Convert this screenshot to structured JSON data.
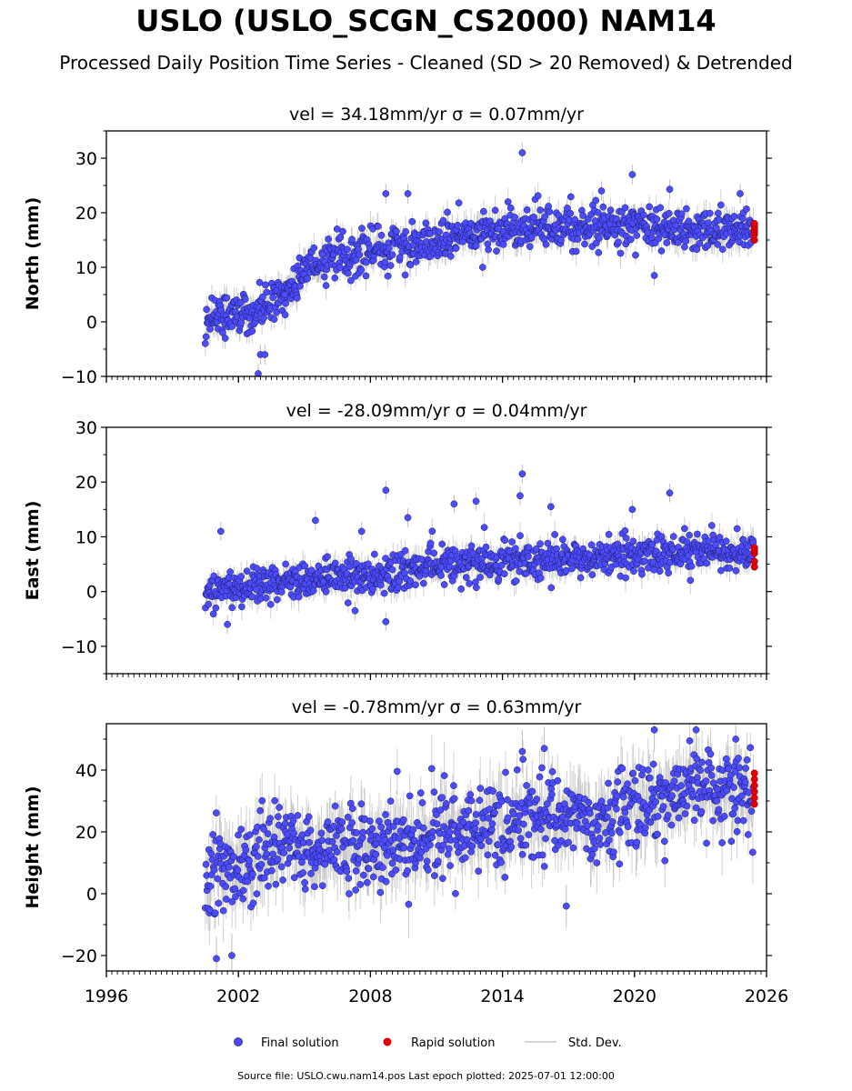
{
  "header": {
    "title": "USLO (USLO_SCGN_CS2000) NAM14",
    "subtitle": "Processed Daily Position Time Series - Cleaned (SD > 20 Removed) & Detrended"
  },
  "footer": {
    "text": "Source file: USLO.cwu.nam14.pos  Last epoch plotted: 2025-07-01 12:00:00"
  },
  "legend": {
    "final_label": "Final solution",
    "rapid_label": "Rapid solution",
    "std_label": "Std. Dev."
  },
  "colors": {
    "final_fill": "#4b4bff",
    "final_edge": "#1a1a55",
    "rapid": "#e00000",
    "std": "#bdbdbd"
  },
  "chart_data": [
    {
      "type": "scatter",
      "title": "vel = 34.18mm/yr   σ = 0.07mm/yr",
      "ylabel": "North (mm)",
      "xlabel": "",
      "xlim": [
        1996,
        2026
      ],
      "ylim": [
        -10,
        35
      ],
      "yticks": [
        -10,
        0,
        10,
        20,
        30
      ],
      "ytick_labels": [
        "−10",
        "0",
        "10",
        "20",
        "30"
      ],
      "xticks": [
        1996,
        2002,
        2008,
        2014,
        2020,
        2026
      ],
      "xtick_labels": [],
      "series": [
        {
          "name": "Final solution",
          "x_range": [
            2000.5,
            2025.4
          ],
          "trend": [
            [
              2000.5,
              1
            ],
            [
              2001.5,
              2
            ],
            [
              2003.0,
              2
            ],
            [
              2004.0,
              4
            ],
            [
              2005.0,
              10
            ],
            [
              2006.5,
              12
            ],
            [
              2008.0,
              13
            ],
            [
              2010.0,
              14.5
            ],
            [
              2012.0,
              15.5
            ],
            [
              2014.0,
              17
            ],
            [
              2016.0,
              17.5
            ],
            [
              2018.0,
              17.5
            ],
            [
              2020.0,
              17.5
            ],
            [
              2022.0,
              17
            ],
            [
              2025.4,
              17
            ]
          ],
          "scatter_sd": 1.8,
          "outliers": [
            [
              2014.9,
              31
            ],
            [
              2019.9,
              27
            ],
            [
              2009.7,
              23.5
            ],
            [
              2008.7,
              23.5
            ],
            [
              2018.5,
              24
            ],
            [
              2021.6,
              24.3
            ],
            [
              2002.9,
              -9.5
            ],
            [
              2003.0,
              -6
            ],
            [
              2003.2,
              -6
            ],
            [
              2013.1,
              10
            ],
            [
              2020.9,
              8.5
            ],
            [
              2001.4,
              -3
            ],
            [
              2004.1,
              5
            ],
            [
              2024.8,
              23.5
            ]
          ]
        },
        {
          "name": "Rapid solution",
          "x": [
            2025.45,
            2025.45,
            2025.45,
            2025.45,
            2025.45,
            2025.45
          ],
          "y": [
            15,
            16,
            16.5,
            17,
            17.5,
            18
          ]
        }
      ]
    },
    {
      "type": "scatter",
      "title": "vel = -28.09mm/yr   σ = 0.04mm/yr",
      "ylabel": "East (mm)",
      "xlabel": "",
      "xlim": [
        1996,
        2026
      ],
      "ylim": [
        -15,
        30
      ],
      "yticks": [
        -10,
        0,
        10,
        20,
        30
      ],
      "ytick_labels": [
        "−10",
        "0",
        "10",
        "20",
        "30"
      ],
      "xticks": [
        1996,
        2002,
        2008,
        2014,
        2020,
        2026
      ],
      "xtick_labels": [],
      "series": [
        {
          "name": "Final solution",
          "x_range": [
            2000.5,
            2025.4
          ],
          "trend": [
            [
              2000.5,
              0
            ],
            [
              2003.0,
              1.5
            ],
            [
              2006.0,
              2.5
            ],
            [
              2009.0,
              3
            ],
            [
              2011.0,
              4.5
            ],
            [
              2014.0,
              5.5
            ],
            [
              2017.0,
              6
            ],
            [
              2020.0,
              6.5
            ],
            [
              2022.0,
              7
            ],
            [
              2025.4,
              7.5
            ]
          ],
          "scatter_sd": 1.7,
          "outliers": [
            [
              2014.9,
              21.5
            ],
            [
              2014.8,
              17.5
            ],
            [
              2008.7,
              18.5
            ],
            [
              2021.6,
              18
            ],
            [
              2001.2,
              11
            ],
            [
              2005.5,
              13
            ],
            [
              2007.6,
              11
            ],
            [
              2008.7,
              -5.5
            ],
            [
              2001.5,
              -6
            ],
            [
              2007.3,
              -3.5
            ],
            [
              2009.7,
              13.5
            ],
            [
              2012.8,
              16.5
            ],
            [
              2016.2,
              15.5
            ],
            [
              2019.9,
              15
            ],
            [
              2011.8,
              16
            ]
          ]
        },
        {
          "name": "Rapid solution",
          "x": [
            2025.45,
            2025.45,
            2025.45,
            2025.45,
            2025.45
          ],
          "y": [
            4.5,
            5.5,
            7,
            7.5,
            8
          ]
        }
      ]
    },
    {
      "type": "scatter",
      "title": "vel = -0.78mm/yr   σ = 0.63mm/yr",
      "ylabel": "Height (mm)",
      "xlabel": "",
      "xlim": [
        1996,
        2026
      ],
      "ylim": [
        -25,
        55
      ],
      "yticks": [
        -20,
        0,
        20,
        40
      ],
      "ytick_labels": [
        "−20",
        "0",
        "20",
        "40"
      ],
      "xticks": [
        1996,
        2002,
        2008,
        2014,
        2020,
        2026
      ],
      "xtick_labels": [
        "1996",
        "2002",
        "2008",
        "2014",
        "2020",
        "2026"
      ],
      "series": [
        {
          "name": "Final solution",
          "x_range": [
            2000.5,
            2025.4
          ],
          "trend": [
            [
              2000.5,
              5
            ],
            [
              2002.0,
              10
            ],
            [
              2004.0,
              14
            ],
            [
              2006.0,
              15
            ],
            [
              2008.0,
              15
            ],
            [
              2010.0,
              18
            ],
            [
              2012.0,
              20
            ],
            [
              2014.0,
              22
            ],
            [
              2016.0,
              25
            ],
            [
              2018.0,
              24
            ],
            [
              2020.0,
              28
            ],
            [
              2022.0,
              32
            ],
            [
              2023.0,
              35
            ],
            [
              2025.4,
              30
            ]
          ],
          "scatter_sd": 7,
          "outliers": [
            [
              2020.9,
              53
            ],
            [
              2022.8,
              53
            ],
            [
              2024.6,
              50
            ],
            [
              2001.0,
              -21
            ],
            [
              2001.7,
              -20
            ],
            [
              2016.9,
              -4
            ],
            [
              2014.9,
              46
            ],
            [
              2015.9,
              47
            ]
          ]
        },
        {
          "name": "Rapid solution",
          "x": [
            2025.45,
            2025.45,
            2025.45,
            2025.45,
            2025.45,
            2025.45
          ],
          "y": [
            29,
            31,
            33,
            35,
            37,
            39
          ]
        }
      ]
    }
  ]
}
